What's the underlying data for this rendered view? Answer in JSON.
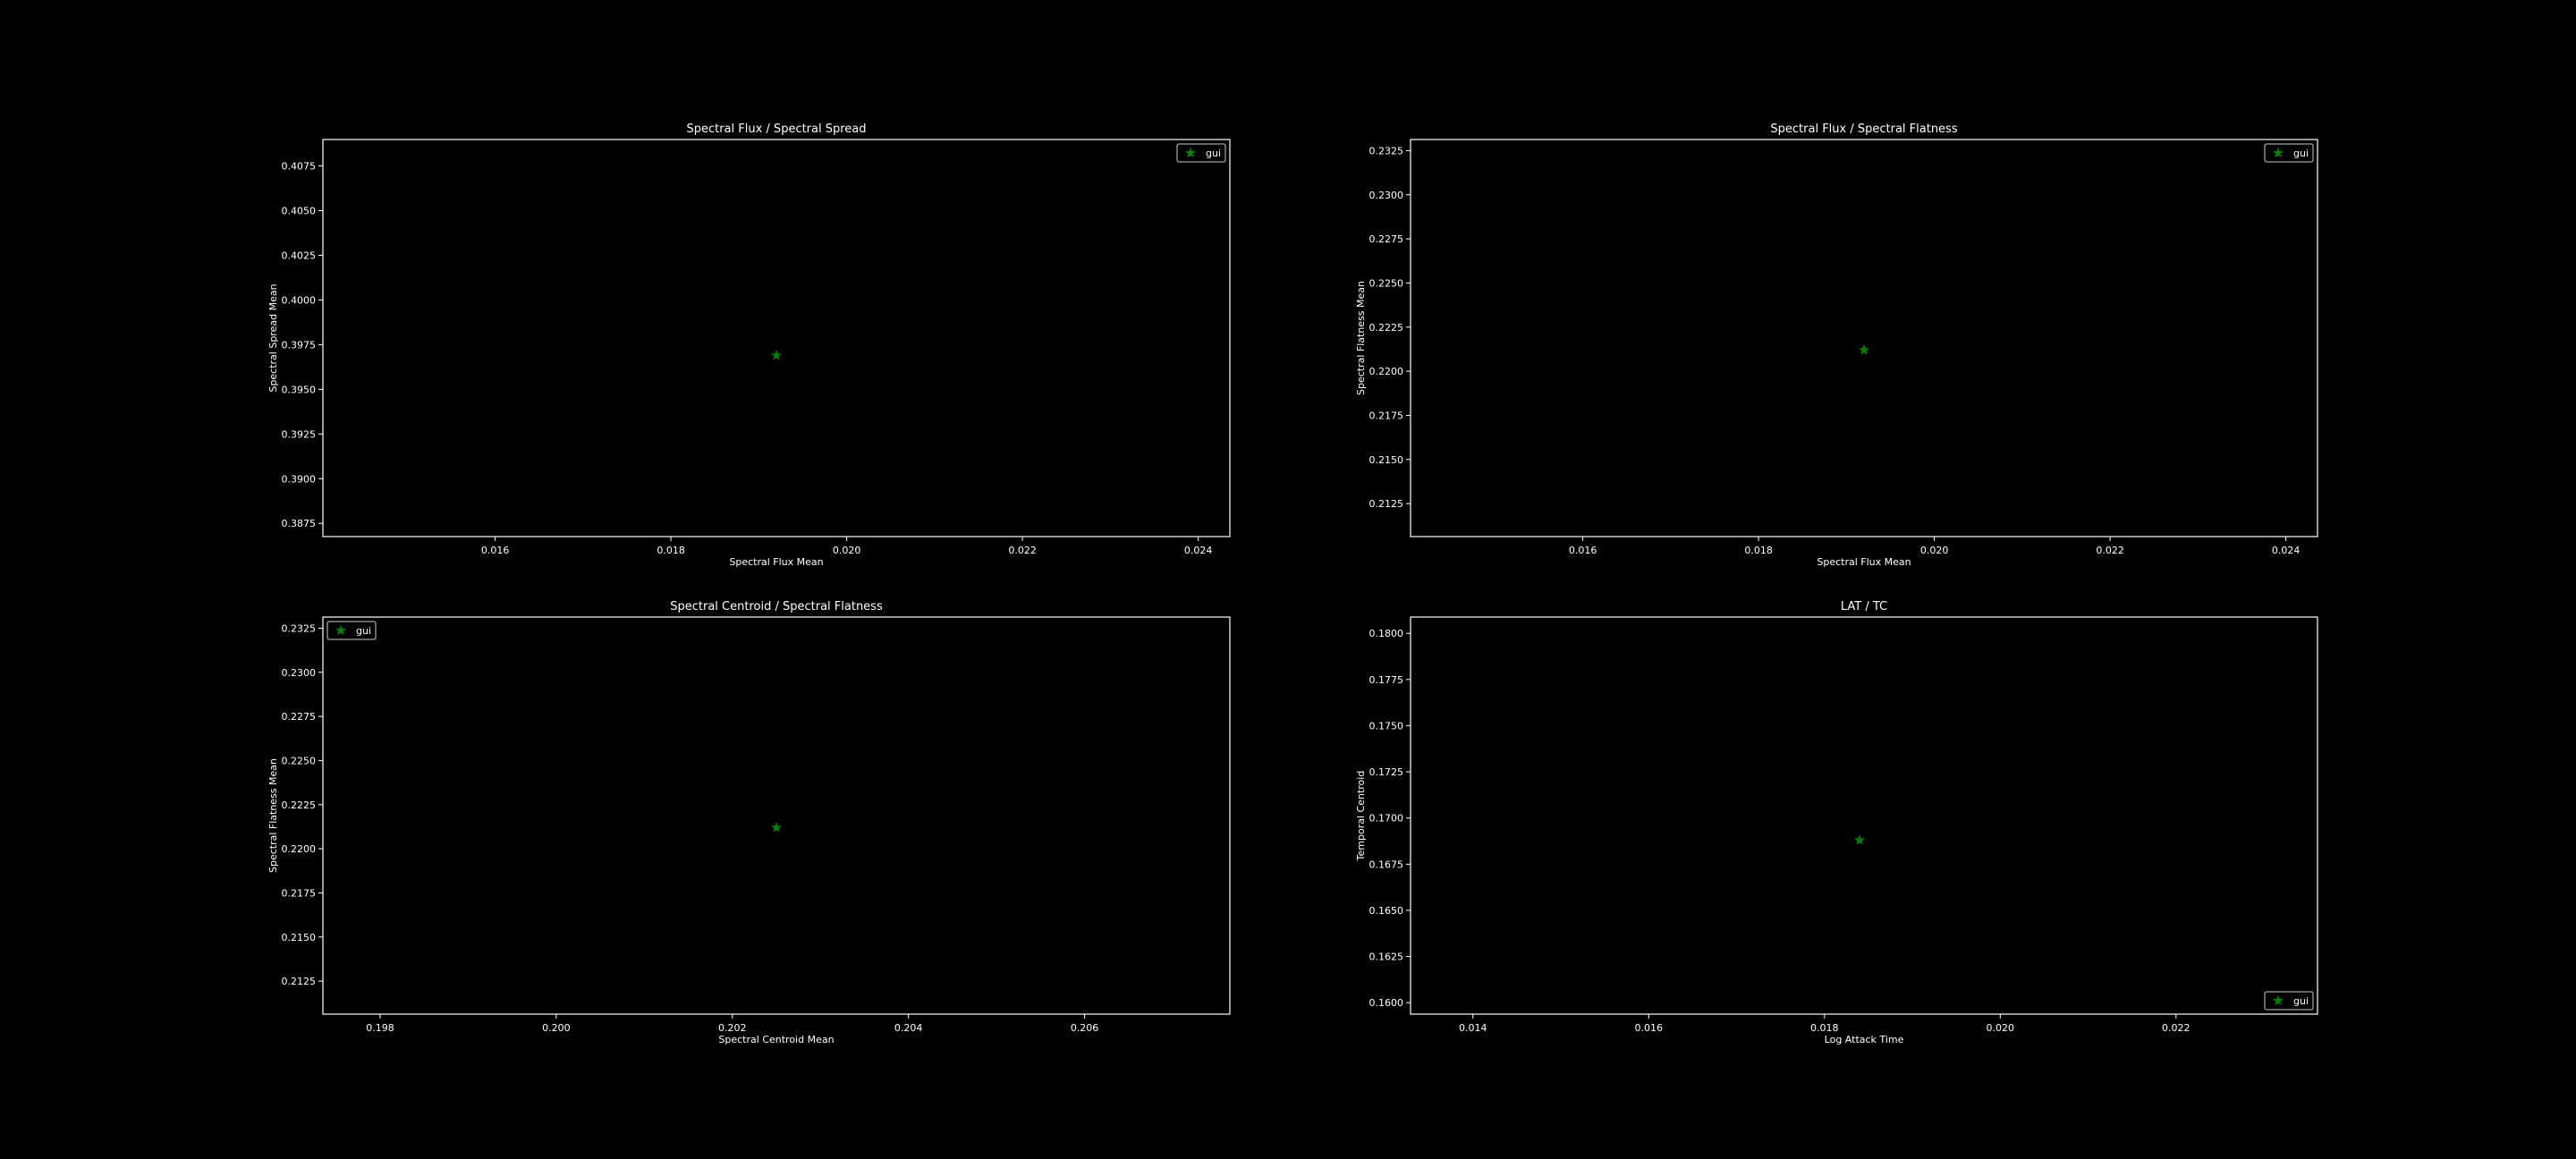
{
  "figure": {
    "background": "#000000",
    "foreground": "#ffffff",
    "marker_color": "#008000",
    "marker": "star"
  },
  "chart_data": [
    {
      "type": "scatter",
      "title": "Spectral Flux / Spectral Spread",
      "xlabel": "Spectral Flux Mean",
      "ylabel": "Spectral Spread Mean",
      "xlim": [
        0.01404,
        0.02436
      ],
      "ylim": [
        0.38676,
        0.40898
      ],
      "xticks": [
        0.016,
        0.018,
        0.02,
        0.022,
        0.024
      ],
      "xtick_labels": [
        "0.016",
        "0.018",
        "0.020",
        "0.022",
        "0.024"
      ],
      "yticks": [
        0.3875,
        0.39,
        0.3925,
        0.395,
        0.3975,
        0.4,
        0.4025,
        0.405,
        0.4075
      ],
      "ytick_labels": [
        "0.3875",
        "0.3900",
        "0.3925",
        "0.3950",
        "0.3975",
        "0.4000",
        "0.4025",
        "0.4050",
        "0.4075"
      ],
      "legend": "upper right",
      "grid": false,
      "series": [
        {
          "name": "gui",
          "x": [
            0.0192
          ],
          "y": [
            0.3969
          ]
        }
      ]
    },
    {
      "type": "scatter",
      "title": "Spectral Flux / Spectral Flatness",
      "xlabel": "Spectral Flux Mean",
      "ylabel": "Spectral Flatness Mean",
      "xlim": [
        0.01404,
        0.02436
      ],
      "ylim": [
        0.21063,
        0.23313
      ],
      "xticks": [
        0.016,
        0.018,
        0.02,
        0.022,
        0.024
      ],
      "xtick_labels": [
        "0.016",
        "0.018",
        "0.020",
        "0.022",
        "0.024"
      ],
      "yticks": [
        0.2125,
        0.215,
        0.2175,
        0.22,
        0.2225,
        0.225,
        0.2275,
        0.23,
        0.2325
      ],
      "ytick_labels": [
        "0.2125",
        "0.2150",
        "0.2175",
        "0.2200",
        "0.2225",
        "0.2250",
        "0.2275",
        "0.2300",
        "0.2325"
      ],
      "legend": "upper right",
      "grid": false,
      "series": [
        {
          "name": "gui",
          "x": [
            0.0192
          ],
          "y": [
            0.2212
          ]
        }
      ]
    },
    {
      "type": "scatter",
      "title": "Spectral Centroid / Spectral Flatness",
      "xlabel": "Spectral Centroid Mean",
      "ylabel": "Spectral Flatness Mean",
      "xlim": [
        0.19735,
        0.20765
      ],
      "ylim": [
        0.21063,
        0.23313
      ],
      "xticks": [
        0.198,
        0.2,
        0.202,
        0.204,
        0.206
      ],
      "xtick_labels": [
        "0.198",
        "0.200",
        "0.202",
        "0.204",
        "0.206"
      ],
      "yticks": [
        0.2125,
        0.215,
        0.2175,
        0.22,
        0.2225,
        0.225,
        0.2275,
        0.23,
        0.2325
      ],
      "ytick_labels": [
        "0.2125",
        "0.2150",
        "0.2175",
        "0.2200",
        "0.2225",
        "0.2250",
        "0.2275",
        "0.2300",
        "0.2325"
      ],
      "legend": "upper left",
      "grid": false,
      "series": [
        {
          "name": "gui",
          "x": [
            0.2025
          ],
          "y": [
            0.2212
          ]
        }
      ]
    },
    {
      "type": "scatter",
      "title": "LAT / TC",
      "xlabel": "Log Attack Time",
      "ylabel": "Temporal Centroid",
      "xlim": [
        0.01329,
        0.02361
      ],
      "ylim": [
        0.15938,
        0.18088
      ],
      "xticks": [
        0.014,
        0.016,
        0.018,
        0.02,
        0.022
      ],
      "xtick_labels": [
        "0.014",
        "0.016",
        "0.018",
        "0.020",
        "0.022"
      ],
      "yticks": [
        0.16,
        0.1625,
        0.165,
        0.1675,
        0.17,
        0.1725,
        0.175,
        0.1775,
        0.18
      ],
      "ytick_labels": [
        "0.1600",
        "0.1625",
        "0.1650",
        "0.1675",
        "0.1700",
        "0.1725",
        "0.1750",
        "0.1775",
        "0.1800"
      ],
      "legend": "lower right",
      "grid": false,
      "series": [
        {
          "name": "gui",
          "x": [
            0.0184
          ],
          "y": [
            0.1688
          ]
        }
      ]
    }
  ]
}
